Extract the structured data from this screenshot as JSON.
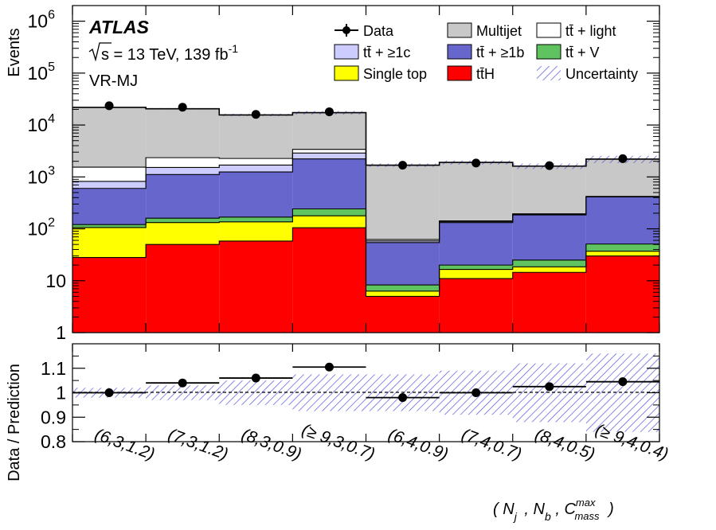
{
  "chart_data": [
    {
      "type": "bar",
      "stacked": true,
      "y_scale": "log",
      "ylim": [
        1,
        2000000
      ],
      "ylabel": "Events",
      "y_ticks": [
        {
          "value": 1,
          "base": "1",
          "exp": ""
        },
        {
          "value": 10,
          "base": "10",
          "exp": ""
        },
        {
          "value": 100,
          "base": "10",
          "exp": "2"
        },
        {
          "value": 1000,
          "base": "10",
          "exp": "3"
        },
        {
          "value": 10000,
          "base": "10",
          "exp": "4"
        },
        {
          "value": 100000,
          "base": "10",
          "exp": "5"
        },
        {
          "value": 1000000,
          "base": "10",
          "exp": "6"
        }
      ],
      "annotations": {
        "experiment": "ATLAS",
        "energy_prefix": "s = 13 TeV, 139 fb",
        "energy_exp": "-1",
        "region": "VR-MJ"
      },
      "categories": [
        "(6,3,1.2)",
        "(7,3,1.2)",
        "(8,3,0.9)",
        "(≥ 9,3,0.7)",
        "(6,4,0.9)",
        "(7,4,0.7)",
        "(8,4,0.5)",
        "(≥ 9,4,0.4)"
      ],
      "series": [
        {
          "name": "tt̄H",
          "color": "#ff0000",
          "values": [
            28,
            50,
            58,
            105,
            5,
            11,
            14.5,
            30
          ]
        },
        {
          "name": "Single top",
          "color": "#ffff00",
          "values": [
            78,
            82,
            78,
            73,
            1.3,
            5.5,
            4,
            7
          ]
        },
        {
          "name": "tt̄ + V",
          "color": "#5fc45f",
          "values": [
            15,
            28,
            32,
            64,
            2,
            3.5,
            6.5,
            14
          ]
        },
        {
          "name": "tt̄ + ≥1b",
          "color": "#6666cc",
          "values": [
            480,
            950,
            1080,
            1980,
            46,
            112,
            160,
            360
          ]
        },
        {
          "name": "tt̄ + ≥1c",
          "color": "#ccccff",
          "values": [
            220,
            410,
            440,
            660,
            4,
            5,
            5,
            6
          ]
        },
        {
          "name": "tt̄ + light",
          "color": "#ffffff",
          "values": [
            720,
            830,
            580,
            510,
            4,
            5,
            5,
            5
          ]
        },
        {
          "name": "Multijet",
          "color": "#c8c8c8",
          "values": [
            20300,
            18200,
            13350,
            13900,
            1620,
            1760,
            1420,
            1780
          ]
        }
      ],
      "data": {
        "name": "Data",
        "values": [
          23500,
          22000,
          16000,
          18000,
          1680,
          1850,
          1650,
          2250
        ]
      },
      "uncertainty_label": "Uncertainty"
    },
    {
      "type": "scatter",
      "ylabel": "Data / Prediction",
      "ylim": [
        0.8,
        1.2
      ],
      "y_ticks": [
        "0.8",
        "0.9",
        "1",
        "1.1"
      ],
      "xlabel": "( N_j , N_b, C_mass^max )",
      "xlabel_parts": {
        "open": "(",
        "nj": "N",
        "nj_sub": "j",
        "sep1": ",",
        "nb": "N",
        "nb_sub": "b",
        "sep2": ",",
        "c": "C",
        "c_sup": "max",
        "c_sub": "mass",
        "close": ")"
      },
      "categories": [
        "(6,3,1.2)",
        "(7,3,1.2)",
        "(8,3,0.9)",
        "(≥ 9,3,0.7)",
        "(6,4,0.9)",
        "(7,4,0.7)",
        "(8,4,0.5)",
        "(≥ 9,4,0.4)"
      ],
      "ratio": [
        1.0,
        1.04,
        1.06,
        1.105,
        0.98,
        1.0,
        1.025,
        1.045
      ],
      "ratio_err": [
        0.012,
        0.012,
        0.01,
        0.01,
        0.018,
        0.015,
        0.015,
        0.016
      ],
      "uncertainty_band": [
        0.02,
        0.03,
        0.05,
        0.075,
        0.075,
        0.09,
        0.12,
        0.16
      ],
      "reference_line": 1.0
    }
  ]
}
